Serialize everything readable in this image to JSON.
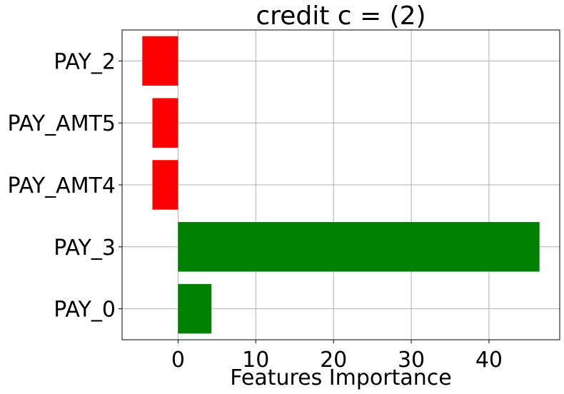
{
  "chart_data": {
    "type": "bar",
    "orientation": "horizontal",
    "title": "credit c = (2)",
    "xlabel": "Features Importance",
    "ylabel": "",
    "categories": [
      "PAY_0",
      "PAY_3",
      "PAY_AMT4",
      "PAY_AMT5",
      "PAY_2"
    ],
    "values": [
      4.3,
      46.5,
      -3.3,
      -3.3,
      -4.6
    ],
    "xticks": [
      0,
      10,
      20,
      30,
      40
    ],
    "xlim": [
      -7.2,
      49.1
    ],
    "grid": true,
    "colors": {
      "positive": "#008000",
      "negative": "#ff0000"
    }
  }
}
